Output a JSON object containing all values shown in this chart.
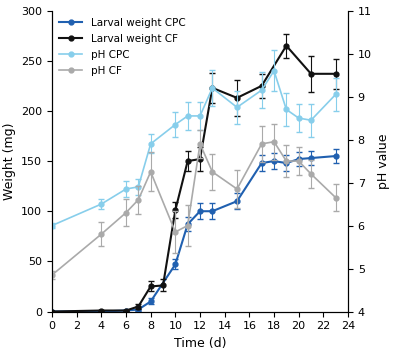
{
  "larval_weight_CPC_x": [
    0,
    4,
    6,
    7,
    8,
    10,
    11,
    12,
    13,
    15,
    17,
    18,
    19,
    20,
    21,
    23
  ],
  "larval_weight_CPC_y": [
    0,
    0,
    1,
    2,
    10,
    47,
    87,
    100,
    100,
    110,
    148,
    150,
    148,
    152,
    153,
    155
  ],
  "larval_weight_CPC_yerr": [
    0,
    0.5,
    0.5,
    1,
    3,
    5,
    7,
    8,
    8,
    8,
    8,
    8,
    8,
    7,
    7,
    7
  ],
  "larval_weight_CF_x": [
    0,
    4,
    6,
    7,
    8,
    9,
    10,
    11,
    12,
    13,
    15,
    17,
    19,
    21,
    23
  ],
  "larval_weight_CF_y": [
    0,
    1,
    1,
    5,
    25,
    26,
    101,
    150,
    152,
    223,
    213,
    225,
    265,
    237,
    237
  ],
  "larval_weight_CF_yerr": [
    0,
    0.5,
    0.5,
    2,
    5,
    6,
    8,
    10,
    12,
    15,
    18,
    12,
    12,
    18,
    15
  ],
  "pH_CPC_x": [
    0,
    4,
    6,
    7,
    8,
    10,
    11,
    12,
    13,
    15,
    17,
    18,
    19,
    20,
    21,
    23
  ],
  "pH_CPC_y": [
    6.0,
    6.5,
    6.85,
    6.9,
    7.9,
    8.35,
    8.55,
    8.55,
    9.2,
    8.75,
    9.15,
    9.6,
    8.7,
    8.5,
    8.45,
    9.05
  ],
  "pH_CPC_yerr": [
    0.05,
    0.12,
    0.18,
    0.18,
    0.22,
    0.28,
    0.32,
    0.32,
    0.42,
    0.38,
    0.42,
    0.48,
    0.38,
    0.32,
    0.38,
    0.38
  ],
  "pH_CF_x": [
    0,
    4,
    6,
    7,
    8,
    10,
    11,
    12,
    13,
    15,
    17,
    18,
    19,
    20,
    21,
    23
  ],
  "pH_CF_y": [
    4.85,
    5.8,
    6.3,
    6.6,
    7.25,
    5.85,
    6.0,
    7.9,
    7.25,
    6.85,
    7.9,
    7.95,
    7.5,
    7.5,
    7.2,
    6.65
  ],
  "pH_CF_yerr": [
    0.1,
    0.28,
    0.32,
    0.32,
    0.45,
    0.48,
    0.48,
    0.32,
    0.42,
    0.45,
    0.42,
    0.42,
    0.38,
    0.32,
    0.32,
    0.32
  ],
  "color_CPC": "#2060b0",
  "color_CF": "#111111",
  "color_pH_CPC": "#87CEEB",
  "color_pH_CF": "#aaaaaa",
  "xlim": [
    0,
    24
  ],
  "ylim_left": [
    0,
    300
  ],
  "ylim_right": [
    4,
    11
  ],
  "xlabel": "Time (d)",
  "ylabel_left": "Weight (mg)",
  "ylabel_right": "pH value",
  "legend_labels": [
    "Larval weight CPC",
    "Larval weight CF",
    "pH CPC",
    "pH CF"
  ],
  "xticks": [
    0,
    2,
    4,
    6,
    8,
    10,
    12,
    14,
    16,
    18,
    20,
    22,
    24
  ],
  "yticks_left": [
    0,
    50,
    100,
    150,
    200,
    250,
    300
  ],
  "yticks_right": [
    4,
    5,
    6,
    7,
    8,
    9,
    10,
    11
  ]
}
